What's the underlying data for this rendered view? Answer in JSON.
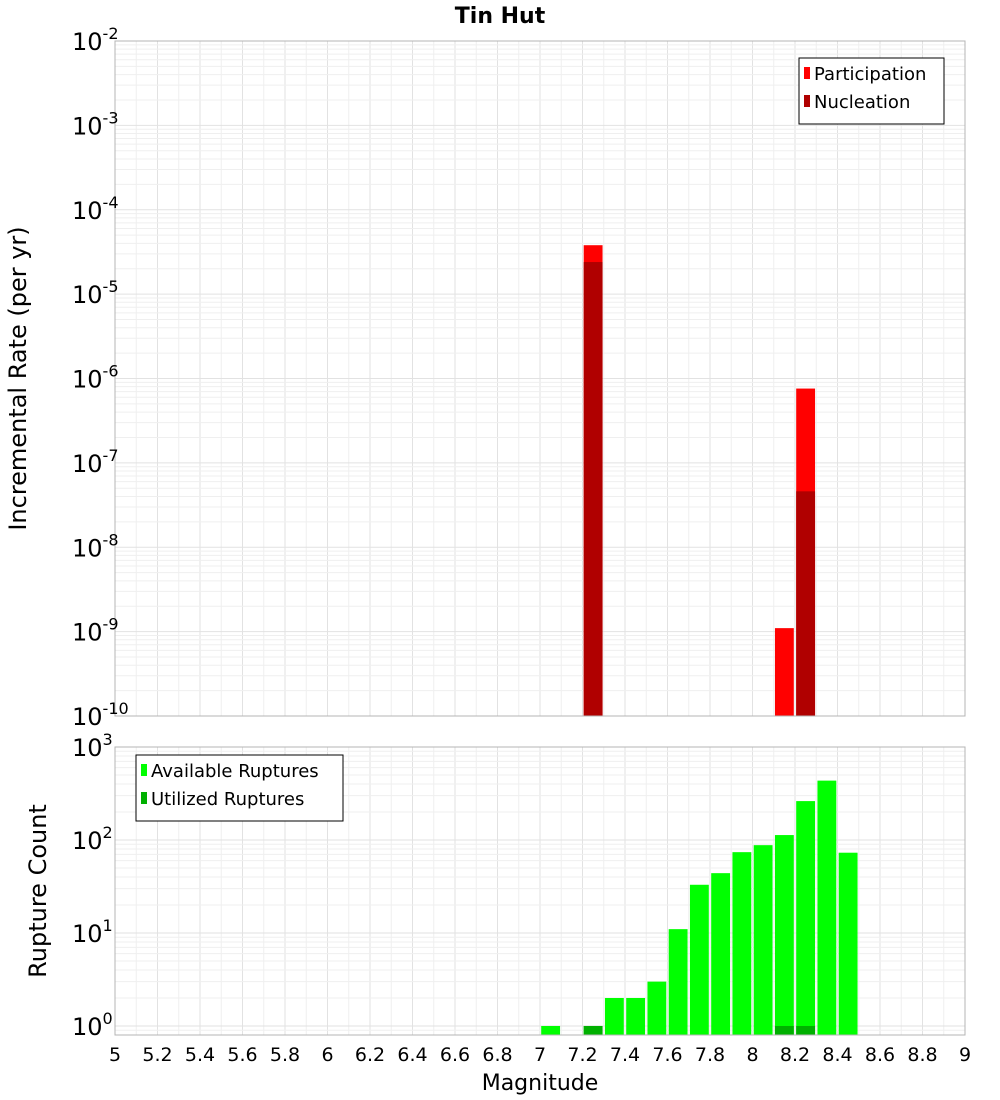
{
  "chart_data": [
    {
      "type": "bar",
      "title": "Tin Hut",
      "xlabel": "",
      "ylabel": "Incremental Rate (per yr)",
      "yscale": "log",
      "ylim": [
        1e-10,
        0.01
      ],
      "xlim": [
        5,
        9
      ],
      "bar_width": 0.1,
      "grid": true,
      "legend": "top-right",
      "series": [
        {
          "name": "Participation",
          "color": "#ff0000",
          "points": [
            {
              "x": 7.25,
              "y": 3.8e-05
            },
            {
              "x": 8.15,
              "y": 1.1e-09
            },
            {
              "x": 8.25,
              "y": 7.6e-07
            }
          ]
        },
        {
          "name": "Nucleation",
          "color": "#b00000",
          "points": [
            {
              "x": 7.25,
              "y": 2.4e-05
            },
            {
              "x": 8.25,
              "y": 4.6e-08
            }
          ]
        }
      ]
    },
    {
      "type": "bar",
      "title": "",
      "xlabel": "Magnitude",
      "ylabel": "Rupture Count",
      "yscale": "log",
      "ylim": [
        0.8,
        1000
      ],
      "xlim": [
        5,
        9
      ],
      "bar_width": 0.1,
      "grid": true,
      "legend": "top-left",
      "x_ticks": [
        "5",
        "5.2",
        "5.4",
        "5.6",
        "5.8",
        "6",
        "6.2",
        "6.4",
        "6.6",
        "6.8",
        "7",
        "7.2",
        "7.4",
        "7.6",
        "7.8",
        "8",
        "8.2",
        "8.4",
        "8.6",
        "8.8",
        "9"
      ],
      "series": [
        {
          "name": "Available Ruptures",
          "color": "#00ff00",
          "points": [
            {
              "x": 7.05,
              "y": 1
            },
            {
              "x": 7.25,
              "y": 1
            },
            {
              "x": 7.35,
              "y": 2
            },
            {
              "x": 7.45,
              "y": 2
            },
            {
              "x": 7.55,
              "y": 3
            },
            {
              "x": 7.65,
              "y": 11
            },
            {
              "x": 7.75,
              "y": 33
            },
            {
              "x": 7.85,
              "y": 44
            },
            {
              "x": 7.95,
              "y": 74
            },
            {
              "x": 8.05,
              "y": 88
            },
            {
              "x": 8.15,
              "y": 113
            },
            {
              "x": 8.25,
              "y": 262
            },
            {
              "x": 8.35,
              "y": 435
            },
            {
              "x": 8.45,
              "y": 73
            }
          ]
        },
        {
          "name": "Utilized Ruptures",
          "color": "#00b000",
          "points": [
            {
              "x": 7.25,
              "y": 1
            },
            {
              "x": 8.15,
              "y": 1
            },
            {
              "x": 8.25,
              "y": 1
            }
          ]
        }
      ]
    }
  ]
}
